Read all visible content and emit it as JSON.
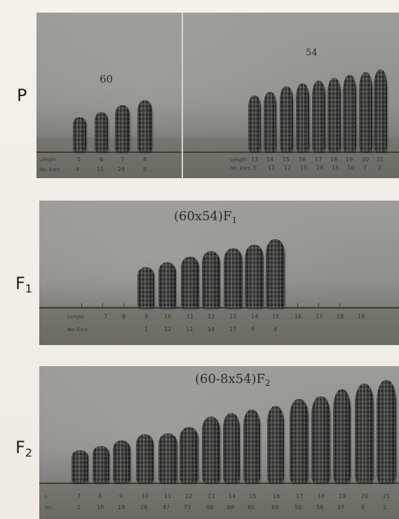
{
  "labels": {
    "p": "P",
    "f1": "F",
    "f1_sub": "1",
    "f2": "F",
    "f2_sub": "2"
  },
  "panel_p": {
    "left_number": "60",
    "right_number": "54",
    "left_row_labels": [
      "Length",
      "No. Ears"
    ],
    "left_lengths": [
      "5",
      "6",
      "7",
      "8"
    ],
    "left_counts": [
      "4",
      "21",
      "24",
      "8"
    ],
    "right_lengths": [
      "13",
      "14",
      "15",
      "16",
      "17",
      "18",
      "19",
      "20",
      "21"
    ],
    "right_counts": [
      "3",
      "11",
      "12",
      "15",
      "26",
      "15",
      "10",
      "7",
      "2"
    ]
  },
  "panel_f1": {
    "title": "(60x54)F",
    "title_sub": "1",
    "row_labels": [
      "Length",
      "No. Ears"
    ],
    "lengths": [
      "7",
      "8",
      "9",
      "10",
      "11",
      "12",
      "13",
      "14",
      "15",
      "16",
      "17",
      "18",
      "19"
    ],
    "counts": [
      "1",
      "12",
      "12",
      "14",
      "17",
      "9",
      "4"
    ]
  },
  "panel_f2": {
    "title": "(60-8x54)F",
    "title_sub": "2",
    "row_labels": [
      "L",
      "No."
    ],
    "lengths": [
      "7",
      "8",
      "9",
      "10",
      "11",
      "12",
      "13",
      "14",
      "15",
      "16",
      "17",
      "18",
      "19",
      "20",
      "21"
    ],
    "counts": [
      "1",
      "10",
      "19",
      "26",
      "47",
      "73",
      "68",
      "68",
      "85",
      "69",
      "50",
      "56",
      "27",
      "9",
      "2"
    ]
  }
}
